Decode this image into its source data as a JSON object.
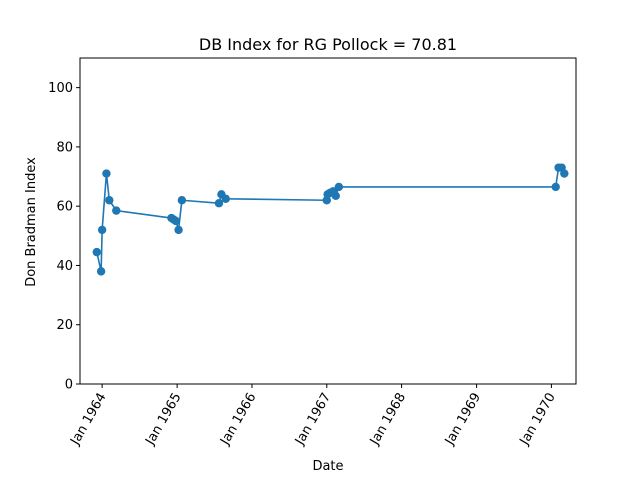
{
  "chart_data": {
    "type": "line",
    "title": "DB Index for RG Pollock = 70.81",
    "xlabel": "Date",
    "ylabel": "Don Bradman Index",
    "xlim": [
      "1963-09-15",
      "1970-05-01"
    ],
    "ylim": [
      0,
      110
    ],
    "x_ticks": [
      "1964-01-01",
      "1965-01-01",
      "1966-01-01",
      "1967-01-01",
      "1968-01-01",
      "1969-01-01",
      "1970-01-01"
    ],
    "x_tick_labels": [
      "Jan 1964",
      "Jan 1965",
      "Jan 1966",
      "Jan 1967",
      "Jan 1968",
      "Jan 1969",
      "Jan 1970"
    ],
    "y_ticks": [
      0,
      20,
      40,
      60,
      80,
      100
    ],
    "y_tick_labels": [
      "0",
      "20",
      "40",
      "60",
      "80",
      "100"
    ],
    "grid": false,
    "line_color": "#1f77b4",
    "series": [
      {
        "x": [
          "1963-12-06",
          "1963-12-27",
          "1964-01-01",
          "1964-01-22",
          "1964-02-05",
          "1964-03-10",
          "1964-12-04",
          "1964-12-15",
          "1964-12-26",
          "1965-01-08",
          "1965-01-24",
          "1965-07-24",
          "1965-08-05",
          "1965-08-26",
          "1967-01-01",
          "1967-01-05",
          "1967-01-17",
          "1967-02-01",
          "1967-02-14",
          "1967-03-01",
          "1970-01-22",
          "1970-02-05",
          "1970-02-20",
          "1970-03-05"
        ],
        "y": [
          44.5,
          38,
          52,
          71,
          62,
          58.5,
          56,
          55.5,
          55,
          52,
          62,
          61,
          64,
          62.5,
          62,
          64,
          64.5,
          65,
          63.5,
          66.5,
          66.5,
          73,
          73,
          71
        ]
      }
    ]
  }
}
